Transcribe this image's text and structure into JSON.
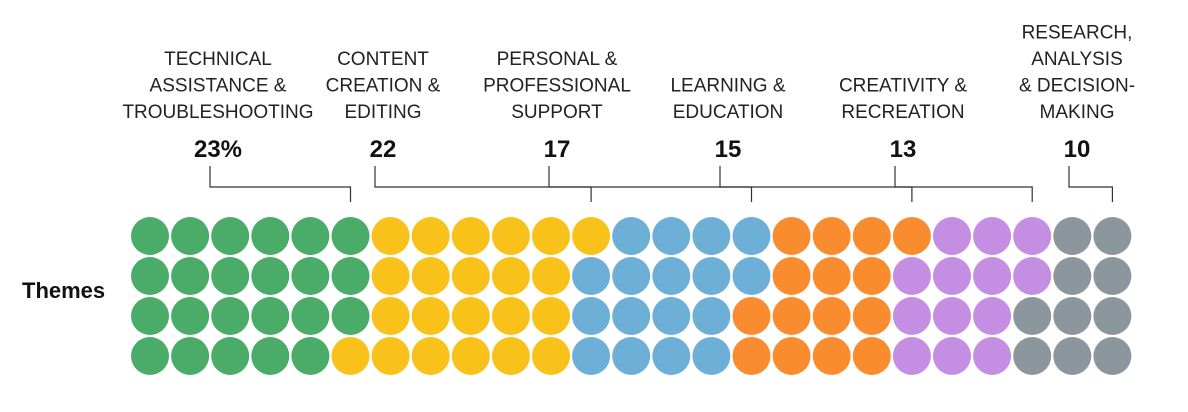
{
  "chart_data": {
    "type": "waffle",
    "row_label": "Themes",
    "grid": {
      "rows": 4,
      "columns": 25,
      "total": 100,
      "fill_order": "column-major, top to bottom"
    },
    "categories": [
      {
        "name": "TECHNICAL ASSISTANCE & TROUBLESHOOTING",
        "label_lines": [
          "TECHNICAL",
          "ASSISTANCE &",
          "TROUBLESHOOTING"
        ],
        "value": 23,
        "value_label": "23%",
        "color": "#4bac6a"
      },
      {
        "name": "CONTENT CREATION & EDITING",
        "label_lines": [
          "CONTENT",
          "CREATION &",
          "EDITING"
        ],
        "value": 22,
        "value_label": "22",
        "color": "#f8c21b"
      },
      {
        "name": "PERSONAL & PROFESSIONAL SUPPORT",
        "label_lines": [
          "PERSONAL &",
          "PROFESSIONAL",
          "SUPPORT"
        ],
        "value": 17,
        "value_label": "17",
        "color": "#6dafd7"
      },
      {
        "name": "LEARNING & EDUCATION",
        "label_lines": [
          "LEARNING &",
          "EDUCATION"
        ],
        "value": 15,
        "value_label": "15",
        "color": "#f98c2f"
      },
      {
        "name": "CREATIVITY & RECREATION",
        "label_lines": [
          "CREATIVITY &",
          "RECREATION"
        ],
        "value": 13,
        "value_label": "13",
        "color": "#c48fe3"
      },
      {
        "name": "RESEARCH, ANALYSIS & DECISION-MAKING",
        "label_lines": [
          "RESEARCH,",
          "ANALYSIS",
          "& DECISION-",
          "MAKING"
        ],
        "value": 10,
        "value_label": "10",
        "color": "#8c979d"
      }
    ]
  }
}
